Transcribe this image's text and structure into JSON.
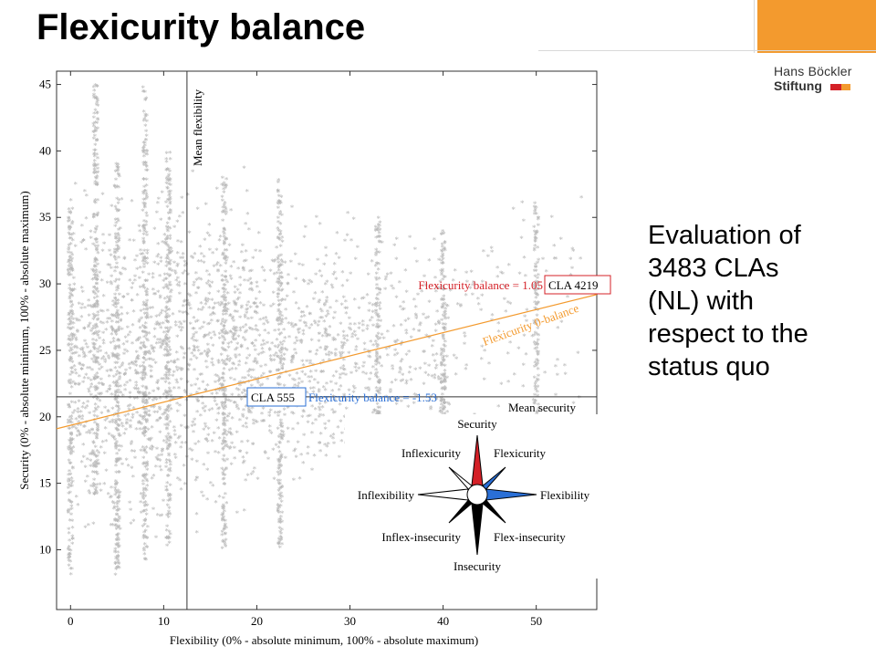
{
  "slide": {
    "title": "Flexicurity balance",
    "logo_line1": "Hans Böckler",
    "logo_line2": "Stiftung",
    "side_text": [
      "Evaluation of",
      "3483 CLAs",
      "(NL) with",
      "respect to the",
      "status quo"
    ]
  },
  "colors": {
    "orange": "#f39a2e",
    "red": "#d42027",
    "blue": "#2a6fd6",
    "points": "#b8b8b8",
    "logo_red": "#d42027",
    "logo_orange": "#f39a2e"
  },
  "chart_data": {
    "type": "scatter",
    "xlabel": "Flexibility (0% - absolute minimum, 100% - absolute maximum)",
    "ylabel": "Security (0% - absolute minimum, 100% - absolute maximum)",
    "xlim": [
      -1.5,
      56.5
    ],
    "ylim": [
      5.5,
      46
    ],
    "xticks": [
      0,
      10,
      20,
      30,
      40,
      50
    ],
    "yticks": [
      10,
      15,
      20,
      25,
      30,
      35,
      40,
      45
    ],
    "grid": false,
    "mean_flexibility": 12.5,
    "mean_security": 21.5,
    "mean_flexibility_label": "Mean flexibility",
    "mean_security_label": "Mean security",
    "zero_balance_line": {
      "label": "Flexicurity 0-balance",
      "x": [
        -1.5,
        56.5
      ],
      "y": [
        19.1,
        29.2
      ]
    },
    "annotations": [
      {
        "box": "CLA 4219",
        "text": "Flexicurity balance = 1.05",
        "color": "red",
        "x": 55,
        "y": 30
      },
      {
        "box": "CLA 555",
        "text": "Flexicurity balance = -1.53",
        "color": "blue",
        "x": 19,
        "y": 23
      }
    ],
    "compass": {
      "labels": {
        "n": "Security",
        "ne": "Flexicurity",
        "e": "Flexibility",
        "se": "Flex-insecurity",
        "s": "Insecurity",
        "sw": "Inflex-insecurity",
        "w": "Inflexibility",
        "nw": "Inflexicurity"
      }
    },
    "series": [
      {
        "n_points": 3483,
        "columns": [
          {
            "x": 0,
            "y": [
              8,
              36
            ]
          },
          {
            "x": 2.7,
            "y": [
              14,
              45
            ]
          },
          {
            "x": 5,
            "y": [
              8,
              39
            ]
          },
          {
            "x": 8,
            "y": [
              9,
              45
            ]
          },
          {
            "x": 10.5,
            "y": [
              10,
              40
            ]
          },
          {
            "x": 16.5,
            "y": [
              10,
              38
            ]
          },
          {
            "x": 22.5,
            "y": [
              10,
              38
            ]
          },
          {
            "x": 33,
            "y": [
              10,
              35
            ]
          },
          {
            "x": 40,
            "y": [
              11,
              34
            ]
          },
          {
            "x": 50,
            "y": [
              19,
              36
            ]
          }
        ],
        "cloud": [
          {
            "x": [
              0,
              10
            ],
            "y": [
              8,
              40
            ],
            "n": 700
          },
          {
            "x": [
              10,
              20
            ],
            "y": [
              10,
              40
            ],
            "n": 650
          },
          {
            "x": [
              20,
              30
            ],
            "y": [
              12,
              38
            ],
            "n": 450
          },
          {
            "x": [
              30,
              40
            ],
            "y": [
              14,
              36
            ],
            "n": 250
          },
          {
            "x": [
              40,
              55
            ],
            "y": [
              15,
              39
            ],
            "n": 120
          }
        ]
      }
    ]
  }
}
